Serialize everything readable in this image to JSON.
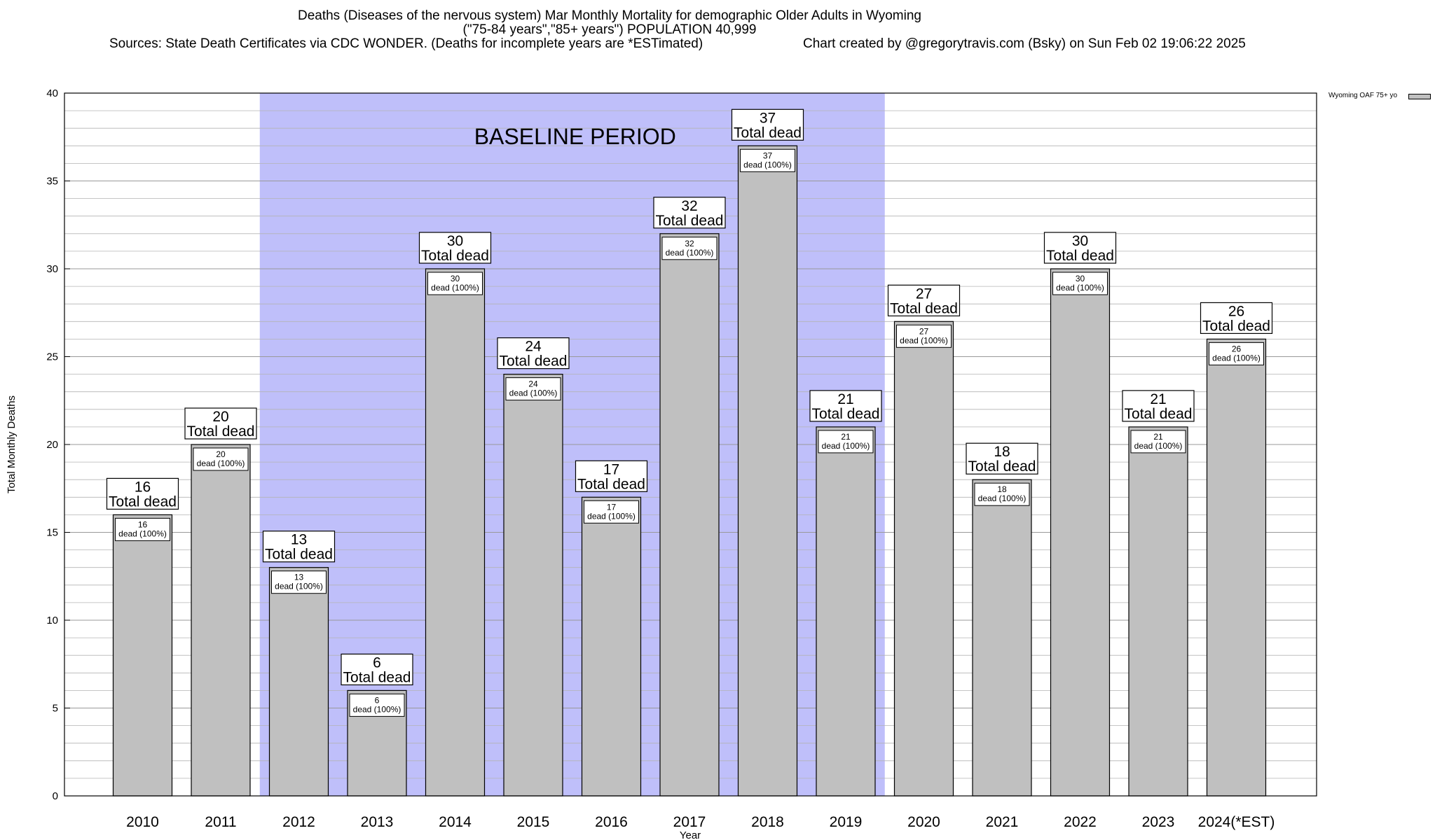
{
  "title": {
    "line1": "Deaths (Diseases of the nervous system) Mar Monthly Mortality for demographic Older Adults in Wyoming",
    "line2": "(\"75-84 years\",\"85+ years\") POPULATION 40,999",
    "sources": "Sources: State Death Certificates via CDC WONDER. (Deaths for incomplete years are *ESTimated)",
    "credit": "Chart created by @gregorytravis.com (Bsky) on Sun Feb 02 19:06:22 2025"
  },
  "legend": {
    "label": "Wyoming OAF 75+ yo"
  },
  "colors": {
    "bar": "#c0c0c0",
    "baseline": "#bfbffa",
    "grid": "#b4b4b4"
  },
  "chart_data": {
    "type": "bar",
    "title": "Deaths (Diseases of the nervous system) Mar Monthly Mortality for demographic Older Adults in Wyoming",
    "xlabel": "Year",
    "ylabel": "Total Monthly Deaths",
    "ylim": [
      0,
      40
    ],
    "yticks": [
      0,
      5,
      10,
      15,
      20,
      25,
      30,
      35,
      40
    ],
    "grid": true,
    "legend_position": "top-right",
    "categories": [
      "2010",
      "2011",
      "2012",
      "2013",
      "2014",
      "2015",
      "2016",
      "2017",
      "2018",
      "2019",
      "2020",
      "2021",
      "2022",
      "2023",
      "2024(*EST)"
    ],
    "series": [
      {
        "name": "Wyoming OAF 75+ yo",
        "values": [
          16,
          20,
          13,
          6,
          30,
          24,
          17,
          32,
          37,
          21,
          27,
          18,
          30,
          21,
          26
        ]
      }
    ],
    "top_label_suffix": "Total dead",
    "inner_label_suffix": "dead (100%)",
    "baseline_period": {
      "label": "BASELINE PERIOD",
      "start": "2012",
      "end": "2019"
    }
  }
}
